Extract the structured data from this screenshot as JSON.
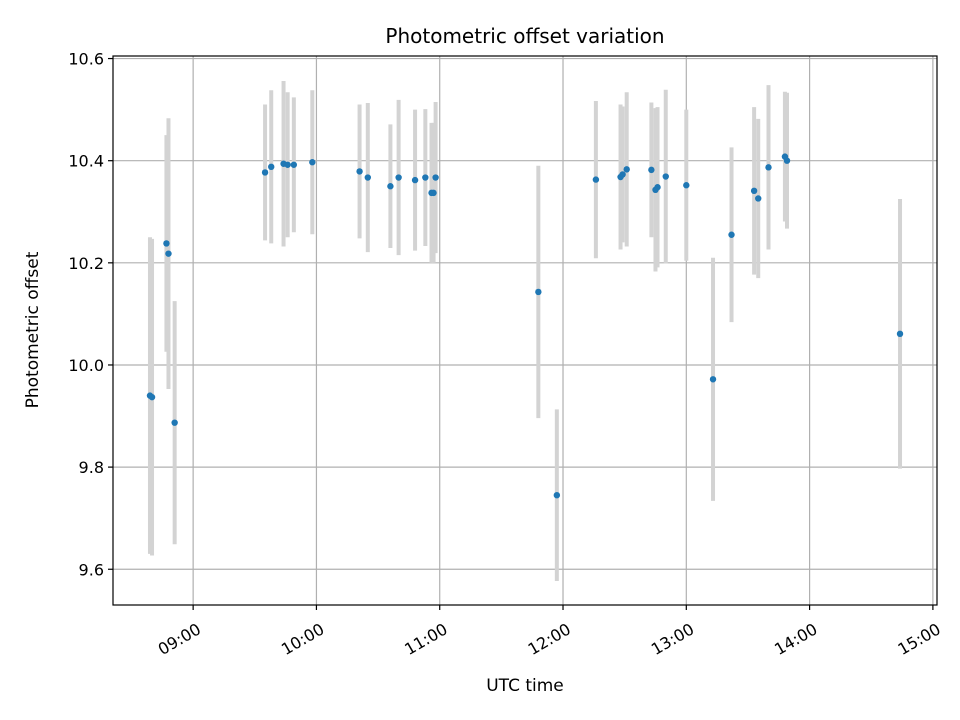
{
  "chart_data": {
    "type": "scatter",
    "title": "Photometric offset variation",
    "xlabel": "UTC time",
    "ylabel": "Photometric offset",
    "x_ticks": [
      "09:00",
      "10:00",
      "11:00",
      "12:00",
      "13:00",
      "14:00",
      "15:00"
    ],
    "y_ticks": [
      "9.6",
      "9.8",
      "10.0",
      "10.2",
      "10.4",
      "10.6"
    ],
    "xlim": [
      "08:21",
      "15:02"
    ],
    "ylim": [
      9.53,
      10.605
    ],
    "grid": true,
    "colors": {
      "point": "#1f77b4",
      "errorbar": "#d3d3d3",
      "grid": "#b0b0b0"
    },
    "points": [
      {
        "x": "08:39",
        "y": 9.94,
        "err": 0.31
      },
      {
        "x": "08:40",
        "y": 9.937,
        "err": 0.31
      },
      {
        "x": "08:47",
        "y": 10.238,
        "err": 0.212
      },
      {
        "x": "08:48",
        "y": 10.218,
        "err": 0.265
      },
      {
        "x": "08:51",
        "y": 9.887,
        "err": 0.238
      },
      {
        "x": "09:35",
        "y": 10.377,
        "err": 0.133
      },
      {
        "x": "09:38",
        "y": 10.388,
        "err": 0.15
      },
      {
        "x": "09:44",
        "y": 10.394,
        "err": 0.162
      },
      {
        "x": "09:46",
        "y": 10.392,
        "err": 0.142
      },
      {
        "x": "09:49",
        "y": 10.392,
        "err": 0.132
      },
      {
        "x": "09:58",
        "y": 10.397,
        "err": 0.141
      },
      {
        "x": "10:21",
        "y": 10.379,
        "err": 0.131
      },
      {
        "x": "10:25",
        "y": 10.367,
        "err": 0.146
      },
      {
        "x": "10:36",
        "y": 10.35,
        "err": 0.121
      },
      {
        "x": "10:40",
        "y": 10.367,
        "err": 0.152
      },
      {
        "x": "10:48",
        "y": 10.362,
        "err": 0.138
      },
      {
        "x": "10:53",
        "y": 10.367,
        "err": 0.134
      },
      {
        "x": "10:56",
        "y": 10.337,
        "err": 0.137
      },
      {
        "x": "10:57",
        "y": 10.337,
        "err": 0.137
      },
      {
        "x": "10:58",
        "y": 10.367,
        "err": 0.148
      },
      {
        "x": "11:48",
        "y": 10.143,
        "err": 0.247
      },
      {
        "x": "11:57",
        "y": 9.745,
        "err": 0.168
      },
      {
        "x": "12:16",
        "y": 10.363,
        "err": 0.154
      },
      {
        "x": "12:28",
        "y": 10.368,
        "err": 0.142
      },
      {
        "x": "12:29",
        "y": 10.373,
        "err": 0.133
      },
      {
        "x": "12:31",
        "y": 10.383,
        "err": 0.151
      },
      {
        "x": "12:43",
        "y": 10.382,
        "err": 0.132
      },
      {
        "x": "12:45",
        "y": 10.343,
        "err": 0.16
      },
      {
        "x": "12:46",
        "y": 10.348,
        "err": 0.157
      },
      {
        "x": "12:50",
        "y": 10.369,
        "err": 0.17
      },
      {
        "x": "13:00",
        "y": 10.352,
        "err": 0.148
      },
      {
        "x": "13:13",
        "y": 9.972,
        "err": 0.238
      },
      {
        "x": "13:22",
        "y": 10.255,
        "err": 0.171
      },
      {
        "x": "13:33",
        "y": 10.341,
        "err": 0.164
      },
      {
        "x": "13:35",
        "y": 10.326,
        "err": 0.156
      },
      {
        "x": "13:40",
        "y": 10.387,
        "err": 0.161
      },
      {
        "x": "13:48",
        "y": 10.408,
        "err": 0.127
      },
      {
        "x": "13:49",
        "y": 10.4,
        "err": 0.133
      },
      {
        "x": "14:44",
        "y": 10.061,
        "err": 0.264
      }
    ]
  }
}
